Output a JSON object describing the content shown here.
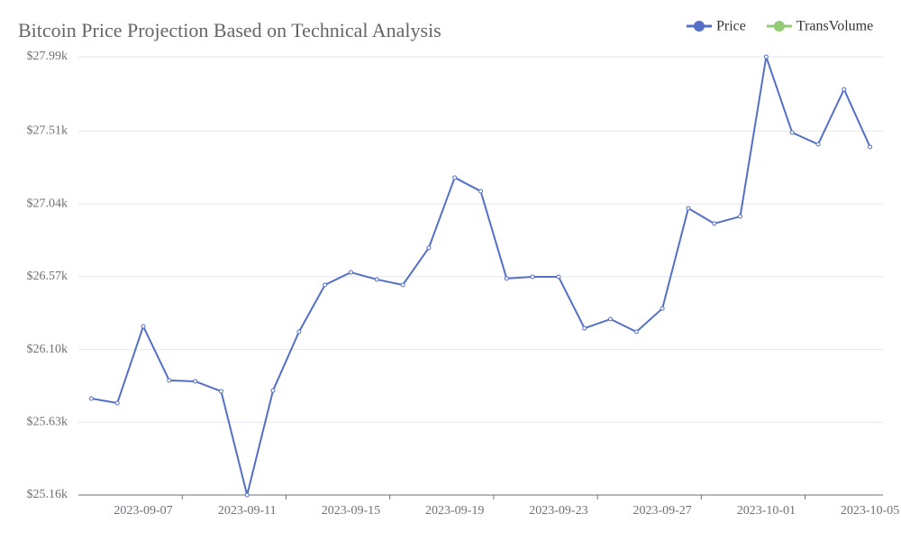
{
  "chart_data": {
    "type": "line",
    "title": "Bitcoin Price Projection Based on Technical Analysis",
    "categories": [
      null,
      null,
      "2023-09-07",
      null,
      null,
      null,
      "2023-09-11",
      null,
      null,
      null,
      "2023-09-15",
      null,
      null,
      null,
      "2023-09-19",
      null,
      null,
      null,
      "2023-09-23",
      null,
      null,
      null,
      "2023-09-27",
      null,
      null,
      null,
      "2023-10-01",
      null,
      null,
      null,
      "2023-10-05"
    ],
    "series": [
      {
        "name": "Price",
        "color": "#5470c6",
        "values": [
          25783,
          25754,
          26249,
          25900,
          25894,
          25830,
          25160,
          25835,
          26214,
          26517,
          26598,
          26552,
          26517,
          26756,
          27210,
          27122,
          26558,
          26569,
          26569,
          26237,
          26296,
          26214,
          26365,
          27012,
          26913,
          26959,
          27990,
          27501,
          27425,
          27780,
          27408
        ]
      }
    ],
    "legend": [
      {
        "name": "Price",
        "color": "#5470c6"
      },
      {
        "name": "TransVolume",
        "color": "#91cc75"
      }
    ],
    "ylim": [
      25160,
      27990
    ],
    "yticks": [
      {
        "value": 25160,
        "label": "$25.16k"
      },
      {
        "value": 25630,
        "label": "$25.63k"
      },
      {
        "value": 26100,
        "label": "$26.10k"
      },
      {
        "value": 26570,
        "label": "$26.57k"
      },
      {
        "value": 27040,
        "label": "$27.04k"
      },
      {
        "value": 27510,
        "label": "$27.51k"
      },
      {
        "value": 27990,
        "label": "$27.99k"
      }
    ],
    "grid": true
  }
}
